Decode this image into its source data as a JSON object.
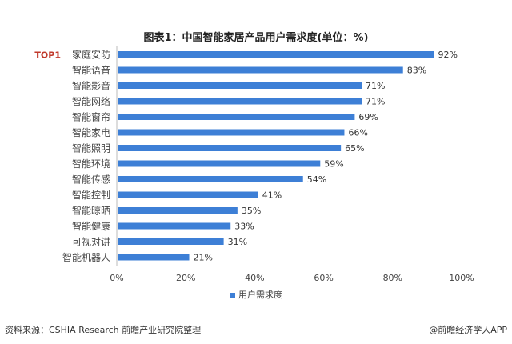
{
  "chart_data": {
    "type": "bar",
    "orientation": "horizontal",
    "title": "图表1：中国智能家居产品用户需求度(单位：%)",
    "categories": [
      "家庭安防",
      "智能语音",
      "智能影音",
      "智能网络",
      "智能窗帘",
      "智能家电",
      "智能照明",
      "智能环境",
      "智能传感",
      "智能控制",
      "智能晾晒",
      "智能健康",
      "可视对讲",
      "智能机器人"
    ],
    "highlight_prefix": "TOP1",
    "series": [
      {
        "name": "用户需求度",
        "values": [
          92,
          83,
          71,
          71,
          69,
          66,
          65,
          59,
          54,
          41,
          35,
          33,
          31,
          21
        ]
      }
    ],
    "value_suffix": "%",
    "xlim": [
      0,
      100
    ],
    "xticks": [
      "0%",
      "20%",
      "40%",
      "60%",
      "80%",
      "100%"
    ],
    "grid": false,
    "legend": "bottom",
    "colors": {
      "bar": "#3d7fd6",
      "highlight": "#c0392b"
    }
  },
  "footer": {
    "source": "资料来源：CSHIA Research 前瞻产业研究院整理",
    "credit": "@前瞻经济学人APP"
  }
}
